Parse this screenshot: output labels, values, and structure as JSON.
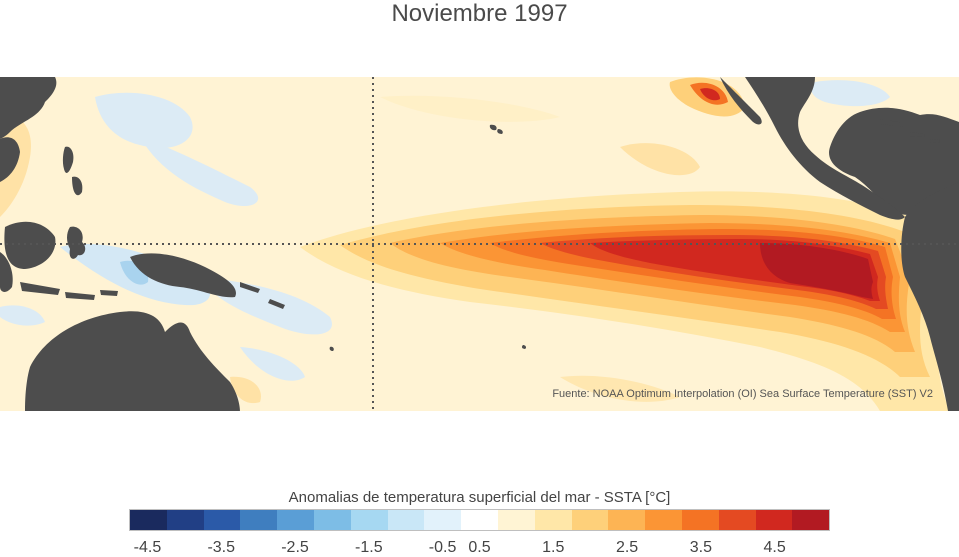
{
  "title": "Noviembre 1997",
  "source": "Fuente: NOAA Optimum Interpolation (OI) Sea Surface Temperature (SST) V2",
  "colorbar": {
    "title": "Anomalias de temperatura superficial del mar - SSTA  [°C]",
    "ticks": [
      "-4.5",
      "-3.5",
      "-2.5",
      "-1.5",
      "-0.5",
      "0.5",
      "1.5",
      "2.5",
      "3.5",
      "4.5"
    ],
    "colors": [
      "#1a2a5e",
      "#213f85",
      "#2b5aa8",
      "#3f7ebf",
      "#5a9ed6",
      "#7dbde6",
      "#a6d8f2",
      "#c9e7f7",
      "#e2f2fb",
      "#ffffff",
      "#fff4d4",
      "#ffe7a8",
      "#fed07a",
      "#fdb454",
      "#fb9535",
      "#f47324",
      "#e44a22",
      "#d1281f",
      "#b21a22"
    ]
  },
  "map_colors": {
    "land": "#4d4d4d",
    "ocean_base": "#fff6dc",
    "gridline": "#555555"
  }
}
